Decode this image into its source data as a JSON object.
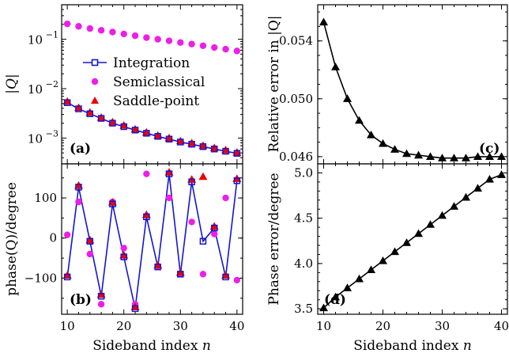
{
  "colors": {
    "integration": "#1515d0",
    "semiclassical": "#ee1ee6",
    "saddle_point": "#ee0000",
    "black": "#000000"
  },
  "chart_data": [
    {
      "panel": "(a)",
      "type": "scatter",
      "ylabel": "|Q|",
      "yscale": "log",
      "xlim": [
        9,
        41
      ],
      "ylim": [
        0.0003,
        0.5
      ],
      "yticks": [
        0.001,
        0.01,
        0.1
      ],
      "ytick_labels": [
        {
          "mantissa": "10",
          "exp": "−3"
        },
        {
          "mantissa": "10",
          "exp": "−2"
        },
        {
          "mantissa": "10",
          "exp": "−1"
        }
      ],
      "legend": {
        "placement": "center",
        "entries": [
          "Integration",
          "Semiclassical",
          "Saddle-point"
        ]
      },
      "x": [
        10,
        12,
        14,
        16,
        18,
        20,
        22,
        24,
        26,
        28,
        30,
        32,
        34,
        36,
        38,
        40
      ],
      "series": [
        {
          "name": "Integration",
          "marker": "square-open",
          "line": true,
          "values": [
            0.0052,
            0.0039,
            0.0031,
            0.0025,
            0.002,
            0.0017,
            0.00145,
            0.00125,
            0.00108,
            0.00095,
            0.00083,
            0.00075,
            0.00067,
            0.0006,
            0.00054,
            0.00049
          ]
        },
        {
          "name": "Semiclassical",
          "marker": "circle",
          "line": false,
          "values": [
            0.205,
            0.183,
            0.165,
            0.152,
            0.14,
            0.128,
            0.118,
            0.108,
            0.1,
            0.093,
            0.086,
            0.08,
            0.074,
            0.068,
            0.063,
            0.058
          ]
        },
        {
          "name": "Saddle-point",
          "marker": "triangle",
          "line": false,
          "values": [
            0.0055,
            0.0041,
            0.0033,
            0.0026,
            0.0021,
            0.0018,
            0.0015,
            0.0013,
            0.00113,
            0.001,
            0.00087,
            0.00079,
            0.0007,
            0.00063,
            0.00057,
            0.00051
          ]
        }
      ]
    },
    {
      "panel": "(b)",
      "type": "scatter",
      "xlabel_main": "Sideband index ",
      "xlabel_var": "n",
      "ylabel": "phase(Q)/degree",
      "xlim": [
        9,
        41
      ],
      "ylim": [
        -190,
        185
      ],
      "yticks": [
        -100,
        0,
        100
      ],
      "ytick_labels": [
        "−100",
        "0",
        "100"
      ],
      "xticks": [
        10,
        20,
        30,
        40
      ],
      "xtick_labels": [
        "10",
        "20",
        "30",
        "40"
      ],
      "x": [
        10,
        12,
        14,
        16,
        18,
        20,
        22,
        24,
        26,
        28,
        30,
        32,
        34,
        36,
        38,
        40
      ],
      "series": [
        {
          "name": "Integration",
          "marker": "square-open",
          "line": true,
          "values": [
            -97,
            127,
            -8,
            -145,
            85,
            -47,
            -176,
            53,
            -72,
            160,
            -90,
            140,
            -8,
            25,
            -97,
            143
          ]
        },
        {
          "name": "Semiclassical",
          "marker": "circle",
          "line": false,
          "values": [
            8,
            90,
            -40,
            -165,
            90,
            -25,
            -165,
            160,
            -70,
            100,
            -90,
            40,
            -90,
            10,
            100,
            -105
          ]
        },
        {
          "name": "Saddle-point",
          "marker": "triangle",
          "line": false,
          "values": [
            -93,
            131,
            -5,
            -141,
            89,
            -43,
            -172,
            58,
            -68,
            164,
            -86,
            146,
            153,
            29,
            -93,
            148
          ]
        }
      ]
    },
    {
      "panel": "(c)",
      "type": "line",
      "ylabel": "Relative error in |Q|",
      "xlim": [
        9,
        41
      ],
      "ylim": [
        0.0455,
        0.0565
      ],
      "yticks": [
        0.046,
        0.05,
        0.054
      ],
      "ytick_labels": [
        "0.046",
        "0.050",
        "0.054"
      ],
      "x": [
        10,
        12,
        14,
        16,
        18,
        20,
        22,
        24,
        26,
        28,
        30,
        32,
        34,
        36,
        38,
        40
      ],
      "values": [
        0.0553,
        0.0522,
        0.05,
        0.0485,
        0.0475,
        0.0469,
        0.0465,
        0.0462,
        0.0461,
        0.046,
        0.0459,
        0.0459,
        0.0459,
        0.046,
        0.046,
        0.046
      ]
    },
    {
      "panel": "(d)",
      "type": "line",
      "xlabel_main": "Sideband index ",
      "xlabel_var": "n",
      "ylabel": "Phase error/degree",
      "xlim": [
        9,
        41
      ],
      "ylim": [
        3.44,
        5.1
      ],
      "yticks": [
        3.5,
        4.0,
        4.5,
        5.0
      ],
      "ytick_labels": [
        "3.5",
        "4.0",
        "4.5",
        "5.0"
      ],
      "xticks": [
        10,
        20,
        30,
        40
      ],
      "xtick_labels": [
        "10",
        "20",
        "30",
        "40"
      ],
      "x": [
        10,
        12,
        14,
        16,
        18,
        20,
        22,
        24,
        26,
        28,
        30,
        32,
        34,
        36,
        38,
        40
      ],
      "values": [
        3.51,
        3.63,
        3.73,
        3.83,
        3.93,
        4.03,
        4.13,
        4.23,
        4.33,
        4.43,
        4.53,
        4.63,
        4.73,
        4.83,
        4.93,
        4.98
      ]
    }
  ]
}
